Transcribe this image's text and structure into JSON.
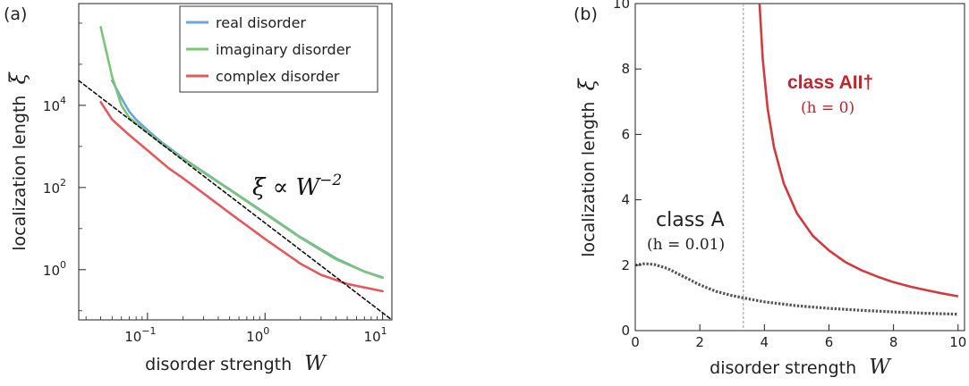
{
  "chart_data": [
    {
      "type": "line",
      "panel_label": "(a)",
      "xlabel": "disorder strength",
      "xlabel_symbol": "W",
      "ylabel": "localization length",
      "ylabel_symbol": "ξ",
      "xscale": "log",
      "yscale": "log",
      "xlim": [
        0.026,
        12
      ],
      "ylim": [
        0.06,
        3000000
      ],
      "xticks": [
        0.1,
        1,
        10
      ],
      "xtick_labels": [
        "10^-1",
        "10^0",
        "10^1"
      ],
      "yticks": [
        1,
        100,
        10000
      ],
      "ytick_labels": [
        "10^0",
        "10^2",
        "10^4"
      ],
      "legend_position": "top-right",
      "annotation": "ξ ∝ W^-2",
      "series": [
        {
          "name": "real disorder",
          "color": "#6aa7d6",
          "x": [
            0.05,
            0.06,
            0.07,
            0.08,
            0.1,
            0.13,
            0.2,
            0.3,
            0.5,
            1,
            2,
            4,
            7,
            10
          ],
          "y": [
            40000,
            15000,
            7000,
            4500,
            2500,
            1300,
            520,
            240,
            90,
            24,
            6.2,
            1.9,
            0.9,
            0.65
          ]
        },
        {
          "name": "imaginary disorder",
          "color": "#7cc47a",
          "x": [
            0.04,
            0.05,
            0.06,
            0.07,
            0.08,
            0.1,
            0.13,
            0.2,
            0.3,
            0.5,
            1,
            2,
            4,
            7,
            10
          ],
          "y": [
            800000,
            50000,
            10000,
            5000,
            3700,
            2200,
            1200,
            500,
            230,
            88,
            23,
            6.0,
            1.8,
            0.9,
            0.63
          ]
        },
        {
          "name": "complex disorder",
          "color": "#e15a5e",
          "x": [
            0.04,
            0.05,
            0.07,
            0.1,
            0.15,
            0.2,
            0.3,
            0.5,
            1,
            2,
            3,
            5,
            10
          ],
          "y": [
            12000,
            4500,
            1900,
            800,
            300,
            170,
            72,
            24,
            5.6,
            1.4,
            0.75,
            0.45,
            0.3
          ]
        },
        {
          "name": "",
          "color": "#111111",
          "dashed": true,
          "x": [
            0.026,
            12
          ],
          "y": [
            40000,
            0.06
          ]
        }
      ]
    },
    {
      "type": "line",
      "panel_label": "(b)",
      "xlabel": "disorder strength",
      "xlabel_symbol": "W",
      "ylabel": "localization length",
      "ylabel_symbol": "ξ",
      "xlim": [
        0,
        10.2
      ],
      "ylim": [
        0,
        10
      ],
      "xticks": [
        0,
        2,
        4,
        6,
        8,
        10
      ],
      "yticks": [
        0,
        2,
        4,
        6,
        8,
        10
      ],
      "vline_x": 3.35,
      "annotations": [
        {
          "text": "class AII†",
          "sub": "(h = 0)",
          "color": "#c0252d"
        },
        {
          "text": "class A",
          "sub": "(h = 0.01)",
          "color": "#222222"
        }
      ],
      "series": [
        {
          "name": "class AII†",
          "color": "#d23a3f",
          "x": [
            3.85,
            3.95,
            4.1,
            4.3,
            4.6,
            5.0,
            5.5,
            6.0,
            6.5,
            7.0,
            7.5,
            8.0,
            8.5,
            9.0,
            9.5,
            10.0
          ],
          "y": [
            10.0,
            8.3,
            6.8,
            5.6,
            4.5,
            3.6,
            2.9,
            2.45,
            2.1,
            1.85,
            1.65,
            1.48,
            1.35,
            1.24,
            1.14,
            1.05
          ]
        },
        {
          "name": "class A",
          "color": "#555555",
          "dotted": true,
          "x": [
            0,
            0.3,
            0.6,
            1.0,
            1.5,
            2.0,
            2.5,
            3.0,
            3.5,
            4.0,
            5.0,
            6.0,
            7.0,
            8.0,
            9.0,
            10.0
          ],
          "y": [
            2.0,
            2.05,
            2.02,
            1.9,
            1.65,
            1.4,
            1.2,
            1.07,
            0.97,
            0.88,
            0.76,
            0.68,
            0.62,
            0.57,
            0.53,
            0.5
          ]
        }
      ]
    }
  ]
}
